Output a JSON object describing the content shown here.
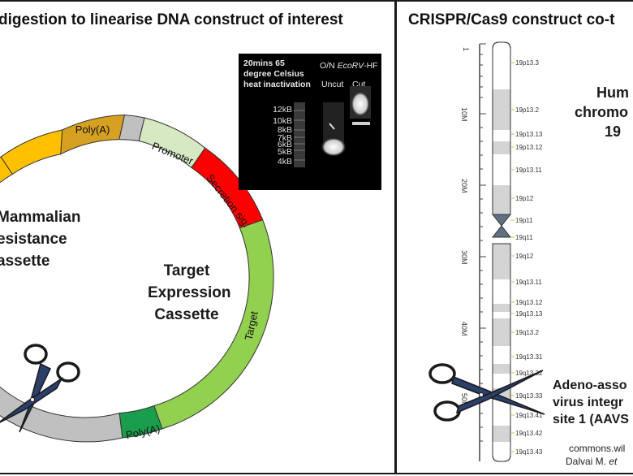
{
  "left": {
    "title": "digestion to linearise DNA construct of interest",
    "plasmid": {
      "segments": {
        "polya_top": "Poly(A)",
        "promoter": "Promoter",
        "secretion": "Secretion sig.",
        "target": "Target",
        "polya_bottom": "Poly(A)"
      },
      "resistance_lines": [
        "Mammalian",
        "esistance",
        "assette"
      ],
      "expression_lines": [
        "Target",
        "Expression",
        "Cassette"
      ]
    },
    "gel": {
      "protocol_lines": [
        "20mins 65",
        "degree Celsius",
        "heat inactivation"
      ],
      "header": "O/N ",
      "enzyme": "EcoRV",
      "enzyme_suffix": "-HF",
      "lane_uncut": "Uncut",
      "lane_cut": "Cut",
      "ladder": [
        "12kB",
        "10kB",
        "8kB",
        "7kB",
        "6kB",
        "5kB",
        "4kB"
      ]
    }
  },
  "right": {
    "title": "CRISPR/Cas9 construct co-t",
    "chromosome_label": [
      "Hum",
      "chromo",
      "19"
    ],
    "aavs_label": [
      "Adeno-asso",
      "virus integr",
      "site 1 (AAVS"
    ],
    "ruler": [
      "1",
      "10M",
      "20M",
      "30M",
      "40M",
      "50M"
    ],
    "bands": [
      "19p13.3",
      "19p13.2",
      "19p13.13",
      "19p13.12",
      "19p13.11",
      "19p12",
      "19p11",
      "19q11",
      "19q12",
      "19q13.11",
      "19q13.12",
      "19q13.13",
      "19q13.2",
      "19q13.31",
      "19q13.32",
      "19q13.33",
      "19q13.41",
      "19q13.42",
      "19q13.43"
    ],
    "credit": [
      "commons.wil",
      "Dalvai M. "
    ],
    "credit_italic": "et"
  },
  "colors": {
    "resistance": "#ffc000",
    "polya": "#d6a021",
    "grey": "#c0c0c0",
    "promoter": "#d7e9c3",
    "secretion": "#ff0000",
    "target": "#92d050",
    "polya_green": "#1a9e4e",
    "chromosome_band": "#d4d4d4",
    "centromere": "#607080"
  }
}
